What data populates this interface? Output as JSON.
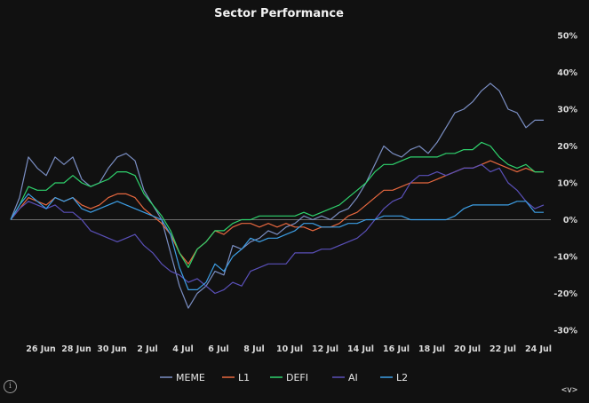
{
  "chart_data": {
    "type": "line",
    "title": "Sector Performance",
    "xlabel": "",
    "ylabel": "",
    "ylim": [
      -30,
      50
    ],
    "y_ticks": [
      -30,
      -20,
      -10,
      0,
      10,
      20,
      30,
      40,
      50
    ],
    "y_tick_labels": [
      "-30%",
      "-20%",
      "-10%",
      "0%",
      "10%",
      "20%",
      "30%",
      "40%",
      "50%"
    ],
    "x_range": [
      0,
      30
    ],
    "x_ticks": [
      {
        "day": 1.7,
        "label": "26 Jun"
      },
      {
        "day": 3.7,
        "label": "28 Jun"
      },
      {
        "day": 5.7,
        "label": "30 Jun"
      },
      {
        "day": 7.7,
        "label": "2 Jul"
      },
      {
        "day": 9.7,
        "label": "4 Jul"
      },
      {
        "day": 11.7,
        "label": "6 Jul"
      },
      {
        "day": 13.7,
        "label": "8 Jul"
      },
      {
        "day": 15.7,
        "label": "10 Jul"
      },
      {
        "day": 17.7,
        "label": "12 Jul"
      },
      {
        "day": 19.7,
        "label": "14 Jul"
      },
      {
        "day": 21.7,
        "label": "16 Jul"
      },
      {
        "day": 23.7,
        "label": "18 Jul"
      },
      {
        "day": 25.7,
        "label": "20 Jul"
      },
      {
        "day": 27.7,
        "label": "22 Jul"
      },
      {
        "day": 29.7,
        "label": "24 Jul"
      }
    ],
    "legend_position": "bottom-center",
    "series": [
      {
        "name": "MEME",
        "color": "#7b8fc4",
        "x": [
          0,
          0.5,
          1,
          1.5,
          2,
          2.5,
          3,
          3.5,
          4,
          4.5,
          5,
          5.5,
          6,
          6.5,
          7,
          7.5,
          8,
          8.5,
          9,
          9.5,
          10,
          10.5,
          11,
          11.5,
          12,
          12.5,
          13,
          13.5,
          14,
          14.5,
          15,
          15.5,
          16,
          16.5,
          17,
          17.5,
          18,
          18.5,
          19,
          19.5,
          20,
          20.5,
          21,
          21.5,
          22,
          22.5,
          23,
          23.5,
          24,
          24.5,
          25,
          25.5,
          26,
          26.5,
          27,
          27.5,
          28,
          28.5,
          29,
          29.5,
          30
        ],
        "values": [
          0,
          6,
          17,
          14,
          12,
          17,
          15,
          17,
          11,
          9,
          10,
          14,
          17,
          18,
          16,
          8,
          4,
          0,
          -9,
          -18,
          -24,
          -20,
          -18,
          -14,
          -15,
          -7,
          -8,
          -6,
          -5,
          -3,
          -4,
          -2,
          -1,
          1,
          0,
          1,
          0,
          2,
          3,
          6,
          10,
          15,
          20,
          18,
          17,
          19,
          20,
          18,
          21,
          25,
          29,
          30,
          32,
          35,
          37,
          35,
          30,
          29,
          25,
          27,
          27
        ]
      },
      {
        "name": "L1",
        "color": "#e8683f",
        "x": [
          0,
          0.5,
          1,
          1.5,
          2,
          2.5,
          3,
          3.5,
          4,
          4.5,
          5,
          5.5,
          6,
          6.5,
          7,
          7.5,
          8,
          8.5,
          9,
          9.5,
          10,
          10.5,
          11,
          11.5,
          12,
          12.5,
          13,
          13.5,
          14,
          14.5,
          15,
          15.5,
          16,
          16.5,
          17,
          17.5,
          18,
          18.5,
          19,
          19.5,
          20,
          20.5,
          21,
          21.5,
          22,
          22.5,
          23,
          23.5,
          24,
          24.5,
          25,
          25.5,
          26,
          26.5,
          27,
          27.5,
          28,
          28.5,
          29,
          29.5,
          30
        ],
        "values": [
          0,
          3,
          6,
          5,
          4,
          6,
          5,
          6,
          4,
          3,
          4,
          6,
          7,
          7,
          6,
          3,
          1,
          -1,
          -4,
          -9,
          -12,
          -8,
          -6,
          -3,
          -4,
          -2,
          -1,
          -1,
          -2,
          -1,
          -2,
          -1,
          -2,
          -2,
          -3,
          -2,
          -2,
          -1,
          1,
          2,
          4,
          6,
          8,
          8,
          9,
          10,
          10,
          10,
          11,
          12,
          13,
          14,
          14,
          15,
          16,
          15,
          14,
          13,
          14,
          13,
          13
        ]
      },
      {
        "name": "DEFI",
        "color": "#2fd36d",
        "x": [
          0,
          0.5,
          1,
          1.5,
          2,
          2.5,
          3,
          3.5,
          4,
          4.5,
          5,
          5.5,
          6,
          6.5,
          7,
          7.5,
          8,
          8.5,
          9,
          9.5,
          10,
          10.5,
          11,
          11.5,
          12,
          12.5,
          13,
          13.5,
          14,
          14.5,
          15,
          15.5,
          16,
          16.5,
          17,
          17.5,
          18,
          18.5,
          19,
          19.5,
          20,
          20.5,
          21,
          21.5,
          22,
          22.5,
          23,
          23.5,
          24,
          24.5,
          25,
          25.5,
          26,
          26.5,
          27,
          27.5,
          28,
          28.5,
          29,
          29.5,
          30
        ],
        "values": [
          0,
          4,
          9,
          8,
          8,
          10,
          10,
          12,
          10,
          9,
          10,
          11,
          13,
          13,
          12,
          7,
          4,
          1,
          -3,
          -9,
          -13,
          -8,
          -6,
          -3,
          -3,
          -1,
          0,
          0,
          1,
          1,
          1,
          1,
          1,
          2,
          1,
          2,
          3,
          4,
          6,
          8,
          10,
          13,
          15,
          15,
          16,
          17,
          17,
          17,
          17,
          18,
          18,
          19,
          19,
          21,
          20,
          17,
          15,
          14,
          15,
          13,
          13
        ]
      },
      {
        "name": "AI",
        "color": "#5a50b9",
        "x": [
          0,
          0.5,
          1,
          1.5,
          2,
          2.5,
          3,
          3.5,
          4,
          4.5,
          5,
          5.5,
          6,
          6.5,
          7,
          7.5,
          8,
          8.5,
          9,
          9.5,
          10,
          10.5,
          11,
          11.5,
          12,
          12.5,
          13,
          13.5,
          14,
          14.5,
          15,
          15.5,
          16,
          16.5,
          17,
          17.5,
          18,
          18.5,
          19,
          19.5,
          20,
          20.5,
          21,
          21.5,
          22,
          22.5,
          23,
          23.5,
          24,
          24.5,
          25,
          25.5,
          26,
          26.5,
          27,
          27.5,
          28,
          28.5,
          29,
          29.5,
          30
        ],
        "values": [
          0,
          3,
          5,
          4,
          3,
          4,
          2,
          2,
          0,
          -3,
          -4,
          -5,
          -6,
          -5,
          -4,
          -7,
          -9,
          -12,
          -14,
          -15,
          -17,
          -16,
          -18,
          -20,
          -19,
          -17,
          -18,
          -14,
          -13,
          -12,
          -12,
          -12,
          -9,
          -9,
          -9,
          -8,
          -8,
          -7,
          -6,
          -5,
          -3,
          0,
          3,
          5,
          6,
          10,
          12,
          12,
          13,
          12,
          13,
          14,
          14,
          15,
          13,
          14,
          10,
          8,
          5,
          3,
          4
        ]
      },
      {
        "name": "L2",
        "color": "#3d9fe6",
        "x": [
          0,
          0.5,
          1,
          1.5,
          2,
          2.5,
          3,
          3.5,
          4,
          4.5,
          5,
          5.5,
          6,
          6.5,
          7,
          7.5,
          8,
          8.5,
          9,
          9.5,
          10,
          10.5,
          11,
          11.5,
          12,
          12.5,
          13,
          13.5,
          14,
          14.5,
          15,
          15.5,
          16,
          16.5,
          17,
          17.5,
          18,
          18.5,
          19,
          19.5,
          20,
          20.5,
          21,
          21.5,
          22,
          22.5,
          23,
          23.5,
          24,
          24.5,
          25,
          25.5,
          26,
          26.5,
          27,
          27.5,
          28,
          28.5,
          29,
          29.5,
          30
        ],
        "values": [
          0,
          4,
          7,
          5,
          3,
          6,
          5,
          6,
          3,
          2,
          3,
          4,
          5,
          4,
          3,
          2,
          1,
          0,
          -4,
          -13,
          -19,
          -19,
          -17,
          -12,
          -14,
          -10,
          -8,
          -5,
          -6,
          -5,
          -5,
          -4,
          -3,
          -1,
          -1,
          -2,
          -2,
          -2,
          -1,
          -1,
          0,
          0,
          1,
          1,
          1,
          0,
          0,
          0,
          0,
          0,
          1,
          3,
          4,
          4,
          4,
          4,
          4,
          5,
          5,
          2,
          2
        ]
      }
    ]
  },
  "ui": {
    "info_icon_glyph": "i",
    "nav_label": "<v>"
  }
}
